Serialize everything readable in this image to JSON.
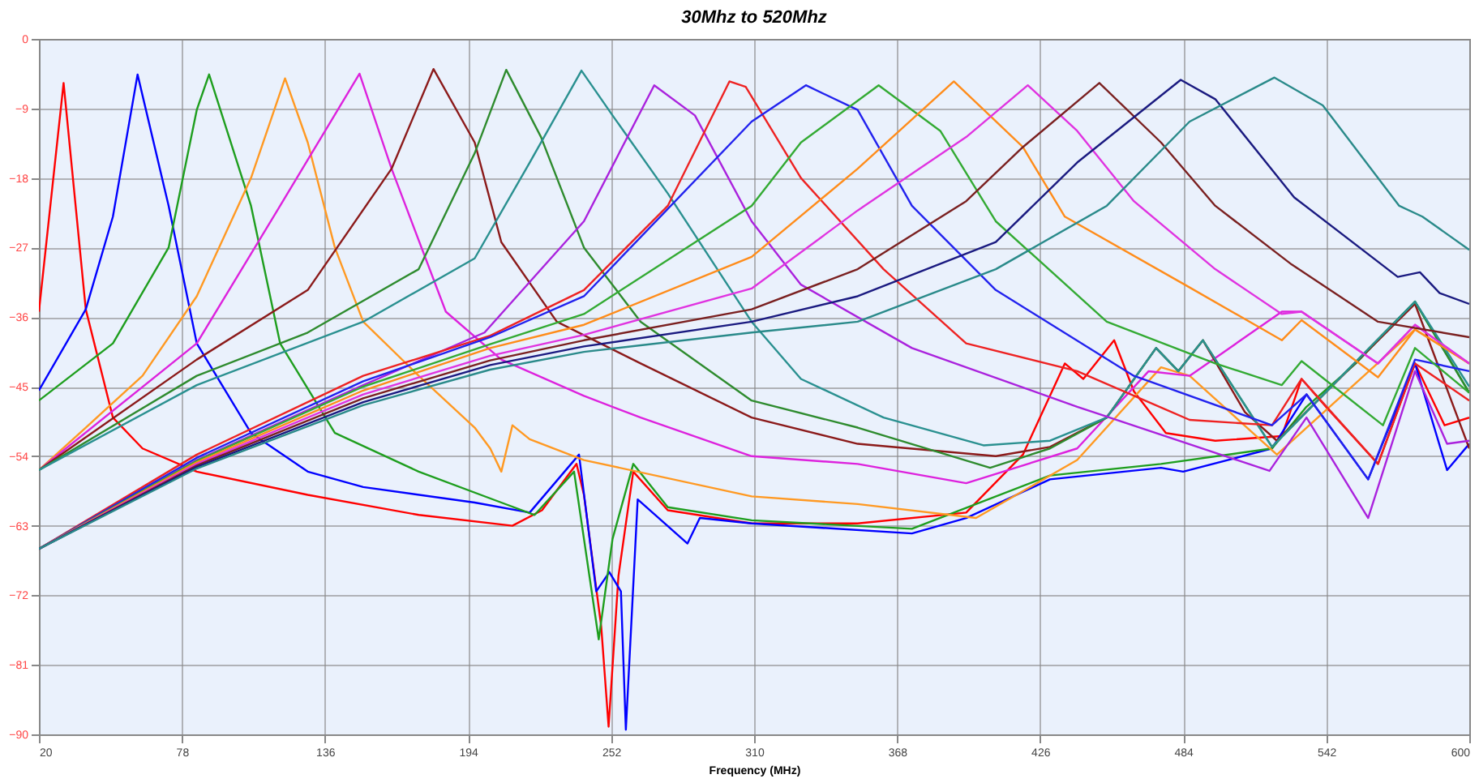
{
  "chart_data": {
    "type": "line",
    "title": "30Mhz to 520Mhz",
    "xlabel": "Frequency (MHz)",
    "xlim": [
      20,
      600
    ],
    "xticks": [
      20,
      78,
      136,
      194,
      252,
      310,
      368,
      426,
      484,
      542,
      600
    ],
    "ylim": [
      -90,
      0
    ],
    "yticks": [
      0,
      -9,
      -18,
      -27,
      -36,
      -45,
      -54,
      -63,
      -72,
      -81,
      -90
    ],
    "grid": true,
    "legend": false,
    "line_style": "solid",
    "marker": "none",
    "series": [
      {
        "color": "#ff0000",
        "x": [
          20,
          30,
          39,
          50,
          62,
          84,
          129,
          174,
          212,
          224,
          238,
          241,
          248,
          251,
          255,
          261,
          275,
          309,
          352,
          396,
          419,
          436,
          443.5,
          456,
          464,
          477,
          497,
          524,
          532,
          543,
          563,
          578,
          590,
          600
        ],
        "values": [
          -35.3,
          -5.7,
          -35,
          -49,
          -53,
          -56,
          -59,
          -61.6,
          -63,
          -61,
          -55,
          -59,
          -76,
          -89,
          -69.5,
          -56,
          -61,
          -62.7,
          -62.7,
          -61.3,
          -53.8,
          -42,
          -44,
          -39,
          -45.6,
          -51,
          -52,
          -51.4,
          -44,
          -48,
          -55,
          -42,
          -50,
          -49
        ]
      },
      {
        "color": "#0000ff",
        "x": [
          20,
          39,
          50,
          60,
          72.6,
          84,
          106,
          129,
          151.5,
          196.7,
          219,
          239,
          246,
          251.3,
          256,
          258,
          262.8,
          283,
          288,
          309,
          374,
          396,
          430,
          475,
          484,
          520,
          534,
          559,
          578,
          591,
          600
        ],
        "values": [
          -45.5,
          -35,
          -23,
          -4.6,
          -21.6,
          -39.4,
          -51,
          -56,
          -58,
          -60,
          -61.3,
          -53.8,
          -71.5,
          -69,
          -71.5,
          -89.4,
          -59.6,
          -65.3,
          -62,
          -62.7,
          -64,
          -62,
          -57,
          -55.5,
          -56,
          -53,
          -46,
          -57,
          -42,
          -55.8,
          -52.4
        ]
      },
      {
        "color": "#1e9e1e",
        "x": [
          20,
          50,
          72.6,
          84,
          89,
          106,
          117.8,
          140,
          174,
          207.5,
          221,
          237,
          247,
          252.6,
          261,
          275,
          309,
          374,
          430,
          475,
          520,
          534,
          554,
          578,
          600
        ],
        "values": [
          -46.8,
          -39.4,
          -27,
          -9.2,
          -4.6,
          -21.6,
          -39.4,
          -51,
          -56,
          -60,
          -61.6,
          -56,
          -77.7,
          -64.7,
          -55,
          -60.6,
          -62.3,
          -63.4,
          -56.5,
          -55,
          -53,
          -47.6,
          -42,
          -34,
          -45.8
        ]
      },
      {
        "color": "#ff9922",
        "x": [
          20,
          39,
          62,
          84,
          106,
          119.8,
          129,
          140,
          151.5,
          174,
          196.7,
          203,
          207.5,
          212,
          219,
          241,
          309,
          352,
          400,
          441,
          475,
          486.6,
          522,
          578,
          600
        ],
        "values": [
          -55.8,
          -50.3,
          -43.6,
          -33.3,
          -18,
          -5.1,
          -13.4,
          -27,
          -36.6,
          -43.6,
          -50.3,
          -53,
          -56,
          -50,
          -51.8,
          -54.5,
          -59.2,
          -60.2,
          -62,
          -54.5,
          -42.5,
          -43.6,
          -53.8,
          -37.6,
          -42
        ]
      },
      {
        "color": "#dd22dd",
        "x": [
          20,
          84,
          117.8,
          150,
          163,
          185,
          207.5,
          241,
          264,
          309,
          352,
          396,
          441,
          470,
          486.6,
          524,
          532,
          563,
          578,
          600
        ],
        "values": [
          -55.8,
          -39.4,
          -21.6,
          -4.5,
          -16.8,
          -35.3,
          -41.5,
          -46.2,
          -49,
          -54,
          -55,
          -57.5,
          -53,
          -43,
          -43.6,
          -35.3,
          -35.3,
          -42,
          -37,
          -42
        ]
      },
      {
        "color": "#8b1a1a",
        "x": [
          20,
          84,
          129,
          163,
          180,
          196.7,
          207.5,
          230,
          264,
          309,
          352,
          408,
          430,
          453,
          473,
          482,
          492,
          509,
          522,
          578,
          600
        ],
        "values": [
          -55.8,
          -41.5,
          -32.5,
          -16.8,
          -3.9,
          -13.4,
          -26.3,
          -36.6,
          -42,
          -49,
          -52.4,
          -54,
          -52.8,
          -49,
          -40,
          -43,
          -39,
          -48.3,
          -52,
          -34.3,
          -53
        ]
      },
      {
        "color": "#2e8b2e",
        "x": [
          20,
          84,
          129,
          174,
          196.7,
          209.5,
          223.6,
          241,
          264,
          309,
          352,
          405.7,
          430,
          453,
          473,
          482,
          492,
          520,
          578,
          600
        ],
        "values": [
          -55.8,
          -43.6,
          -38,
          -29.8,
          -14.8,
          -4,
          -12.7,
          -27,
          -36.6,
          -46.8,
          -50.3,
          -55.5,
          -53,
          -49,
          -40,
          -43,
          -39,
          -52.8,
          -34,
          -45.8
        ]
      },
      {
        "color": "#2a9090",
        "x": [
          20,
          84,
          151.5,
          196.7,
          219,
          240,
          252.6,
          275,
          309,
          329,
          362.5,
          403,
          430,
          453,
          473,
          482,
          492,
          520,
          578,
          600
        ],
        "values": [
          -55.8,
          -44.8,
          -36.6,
          -28.4,
          -16,
          -4.1,
          -9.9,
          -20,
          -36.6,
          -44,
          -49,
          -52.6,
          -52,
          -49,
          -40,
          -43,
          -39,
          -52.8,
          -34,
          -45
        ]
      },
      {
        "color": "#aa22dd",
        "x": [
          20,
          84,
          151.5,
          200.7,
          241,
          269.5,
          286,
          309,
          329,
          374,
          441,
          519,
          534,
          559,
          578,
          591,
          600
        ],
        "values": [
          -66,
          -54.5,
          -44.8,
          -38,
          -23.6,
          -6,
          -9.9,
          -23.6,
          -31.8,
          -40,
          -47.6,
          -55.9,
          -49,
          -62,
          -43,
          -52.4,
          -52
        ]
      },
      {
        "color": "#ee2222",
        "x": [
          20,
          84,
          151.5,
          203,
          241,
          275,
          300,
          306.6,
          329,
          362.5,
          396,
          441,
          486.6,
          520,
          532,
          563,
          578,
          600
        ],
        "values": [
          -66,
          -53.8,
          -43.6,
          -38.4,
          -32.5,
          -21.6,
          -5.5,
          -6.2,
          -18,
          -29.8,
          -39.4,
          -43,
          -49.3,
          -50,
          -44,
          -55,
          -42,
          -46.8
        ]
      },
      {
        "color": "#2222ee",
        "x": [
          20,
          84,
          151.5,
          203,
          241,
          309,
          331,
          352,
          374,
          408,
          464,
          520,
          534,
          559,
          578,
          600
        ],
        "values": [
          -66,
          -54.2,
          -44.3,
          -38.6,
          -33.3,
          -10.7,
          -6,
          -9.2,
          -21.6,
          -32.5,
          -43.6,
          -50,
          -46,
          -57,
          -41.5,
          -43
        ]
      },
      {
        "color": "#33aa33",
        "x": [
          20,
          84,
          151.5,
          203,
          241,
          309,
          329,
          360.5,
          385.5,
          408,
          453,
          497,
          524,
          532,
          565,
          578,
          600
        ],
        "values": [
          -66,
          -54.6,
          -45,
          -39.5,
          -35.6,
          -21.6,
          -13.4,
          -6,
          -11.9,
          -23.6,
          -36.6,
          -42,
          -44.8,
          -41.7,
          -50,
          -40,
          -45.8
        ]
      },
      {
        "color": "#ff8c1a",
        "x": [
          20,
          84,
          151.5,
          203,
          241,
          309,
          352,
          391,
          419,
          436,
          484.6,
          524,
          532,
          563,
          578,
          600
        ],
        "values": [
          -66,
          -54.8,
          -45.5,
          -40,
          -37,
          -28.2,
          -16.8,
          -5.5,
          -14,
          -23,
          -31.8,
          -39,
          -36.4,
          -43.8,
          -37.6,
          -42
        ]
      },
      {
        "color": "#e033e0",
        "x": [
          20,
          84,
          151.5,
          203,
          241,
          309,
          352,
          396,
          421,
          441,
          464,
          497,
          524,
          532,
          563,
          578,
          600
        ],
        "values": [
          -66,
          -55,
          -46,
          -41,
          -38.3,
          -32.3,
          -22.2,
          -12.7,
          -6,
          -11.9,
          -21,
          -29.8,
          -35.6,
          -35.3,
          -42,
          -37,
          -42
        ]
      },
      {
        "color": "#7a2020",
        "x": [
          20,
          84,
          151.5,
          203,
          241,
          309,
          352,
          396,
          419,
          450,
          475,
          497,
          528,
          563,
          600
        ],
        "values": [
          -66,
          -55.2,
          -46.5,
          -41.6,
          -39,
          -35,
          -29.8,
          -21,
          -14,
          -5.7,
          -13.4,
          -21.6,
          -29.2,
          -36.6,
          -38.6
        ]
      },
      {
        "color": "#1a1a80",
        "x": [
          20,
          84,
          151.5,
          203,
          241,
          309,
          352,
          408,
          441,
          483,
          497,
          529,
          571,
          580,
          588,
          600
        ],
        "values": [
          -66,
          -55.4,
          -47,
          -42.2,
          -39.8,
          -36.6,
          -33.3,
          -26.3,
          -16,
          -5.3,
          -7.8,
          -20.5,
          -30.8,
          -30.2,
          -32.9,
          -34.3
        ]
      },
      {
        "color": "#2a8a8a",
        "x": [
          20,
          84,
          151.5,
          203,
          241,
          309,
          352,
          408,
          453,
          486.6,
          521,
          540.6,
          571.6,
          581,
          600
        ],
        "values": [
          -66,
          -55.6,
          -47.4,
          -42.8,
          -40.5,
          -38,
          -36.6,
          -29.8,
          -21.6,
          -10.7,
          -5,
          -8.6,
          -21.6,
          -23,
          -27.3
        ]
      }
    ]
  }
}
